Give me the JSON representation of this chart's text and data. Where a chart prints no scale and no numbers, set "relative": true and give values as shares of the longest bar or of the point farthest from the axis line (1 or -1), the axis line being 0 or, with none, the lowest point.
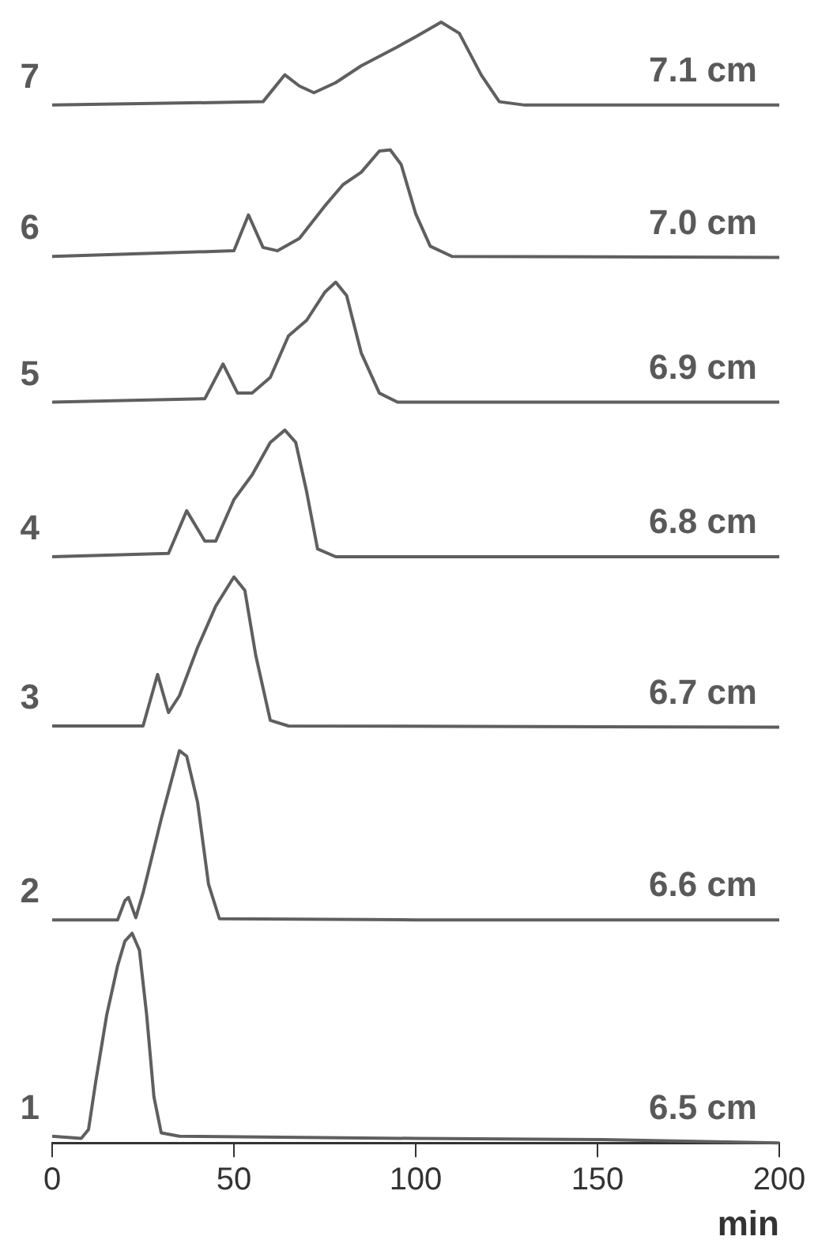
{
  "chart_data": {
    "type": "line",
    "relative": true,
    "xlabel": "min",
    "xlim": [
      0,
      200
    ],
    "xticks": [
      0,
      50,
      100,
      150,
      200
    ],
    "grid": false,
    "legend": false,
    "marker": "none",
    "line_style": "solid",
    "series": [
      {
        "name": "6.5 cm",
        "color": "#5f5f5f",
        "x": [
          0,
          8,
          10,
          12,
          15,
          18,
          20,
          22,
          24,
          26,
          28,
          30,
          35,
          100,
          150,
          200
        ],
        "values": [
          0.006,
          0.004,
          0.012,
          0.055,
          0.114,
          0.158,
          0.18,
          0.187,
          0.172,
          0.114,
          0.041,
          0.009,
          0.006,
          0.004,
          0.003,
          0
        ]
      },
      {
        "name": "6.6 cm",
        "color": "#5f5f5f",
        "x": [
          0,
          18,
          20,
          21,
          23,
          25,
          30,
          35,
          37,
          40,
          43,
          46,
          100,
          200
        ],
        "values": [
          0.199,
          0.199,
          0.216,
          0.219,
          0.201,
          0.223,
          0.289,
          0.35,
          0.345,
          0.304,
          0.231,
          0.2,
          0.199,
          0.199
        ]
      },
      {
        "name": "6.7 cm",
        "color": "#5f5f5f",
        "x": [
          0,
          25,
          29,
          32,
          35,
          40,
          45,
          50,
          53,
          56,
          60,
          65,
          200
        ],
        "values": [
          0.372,
          0.372,
          0.418,
          0.384,
          0.399,
          0.442,
          0.479,
          0.505,
          0.493,
          0.435,
          0.377,
          0.372,
          0.371
        ]
      },
      {
        "name": "6.8 cm",
        "color": "#5f5f5f",
        "x": [
          0,
          32,
          37,
          42,
          45,
          50,
          55,
          60,
          64,
          67,
          70,
          73,
          78,
          200
        ],
        "values": [
          0.523,
          0.526,
          0.564,
          0.537,
          0.537,
          0.574,
          0.596,
          0.625,
          0.636,
          0.625,
          0.581,
          0.53,
          0.523,
          0.523
        ]
      },
      {
        "name": "6.9 cm",
        "color": "#5f5f5f",
        "x": [
          0,
          42,
          47,
          51,
          55,
          60,
          65,
          70,
          75,
          78,
          81,
          85,
          90,
          95,
          200
        ],
        "values": [
          0.661,
          0.664,
          0.695,
          0.669,
          0.669,
          0.683,
          0.72,
          0.734,
          0.759,
          0.768,
          0.756,
          0.705,
          0.669,
          0.661,
          0.661
        ]
      },
      {
        "name": "7.0 cm",
        "color": "#5f5f5f",
        "x": [
          0,
          50,
          54,
          58,
          62,
          68,
          75,
          80,
          85,
          90,
          93,
          96,
          100,
          104,
          110,
          200
        ],
        "values": [
          0.791,
          0.796,
          0.828,
          0.799,
          0.796,
          0.807,
          0.836,
          0.855,
          0.866,
          0.885,
          0.886,
          0.873,
          0.829,
          0.8,
          0.791,
          0.79
        ]
      },
      {
        "name": "7.1 cm",
        "color": "#5f5f5f",
        "x": [
          0,
          58,
          64,
          68,
          72,
          78,
          85,
          95,
          100,
          107,
          112,
          118,
          123,
          130,
          200
        ],
        "values": [
          0.926,
          0.929,
          0.953,
          0.943,
          0.937,
          0.946,
          0.961,
          0.978,
          0.987,
          1,
          0.99,
          0.953,
          0.929,
          0.926,
          0.926
        ]
      }
    ],
    "annotations": [
      "1",
      "2",
      "3",
      "4",
      "5",
      "6",
      "7"
    ]
  }
}
